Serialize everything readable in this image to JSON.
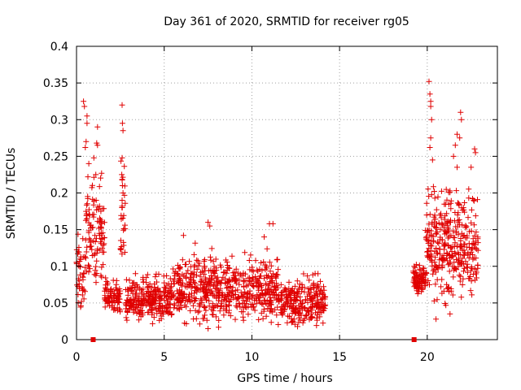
{
  "chart_data": {
    "type": "scatter",
    "title": "Day 361 of 2020, SRMTID for receiver rg05",
    "xlabel": "GPS time / hours",
    "ylabel": "SRMTID / TECUs",
    "xlim": [
      0,
      24
    ],
    "ylim": [
      0,
      0.4
    ],
    "xticks": [
      0,
      5,
      10,
      15,
      20
    ],
    "xtick_labels": [
      "0",
      "5",
      "10",
      "15",
      "20"
    ],
    "yticks": [
      0,
      0.05,
      0.1,
      0.15,
      0.2,
      0.25,
      0.3,
      0.35,
      0.4
    ],
    "ytick_labels": [
      "0",
      "0.05",
      "0.1",
      "0.15",
      "0.2",
      "0.25",
      "0.3",
      "0.35",
      "0.4"
    ],
    "grid": true,
    "marker": "+",
    "color": "#e00000",
    "segments": [
      {
        "x_start": 0.0,
        "x_end": 0.5,
        "y_min": 0.03,
        "y_max": 0.17,
        "count": 45
      },
      {
        "x_start": 0.5,
        "x_end": 1.6,
        "y_min": 0.06,
        "y_max": 0.28,
        "count": 110
      },
      {
        "x_start": 1.6,
        "x_end": 2.5,
        "y_min": 0.03,
        "y_max": 0.1,
        "count": 80
      },
      {
        "x_start": 2.5,
        "x_end": 2.8,
        "y_min": 0.05,
        "y_max": 0.3,
        "count": 28
      },
      {
        "x_start": 2.8,
        "x_end": 5.5,
        "y_min": 0.02,
        "y_max": 0.1,
        "count": 280
      },
      {
        "x_start": 5.5,
        "x_end": 8.0,
        "y_min": 0.02,
        "y_max": 0.14,
        "count": 260
      },
      {
        "x_start": 8.0,
        "x_end": 11.5,
        "y_min": 0.02,
        "y_max": 0.13,
        "count": 330
      },
      {
        "x_start": 11.5,
        "x_end": 14.2,
        "y_min": 0.015,
        "y_max": 0.1,
        "count": 250
      },
      {
        "x_start": 19.2,
        "x_end": 19.9,
        "y_min": 0.06,
        "y_max": 0.11,
        "count": 90
      },
      {
        "x_start": 19.9,
        "x_end": 20.3,
        "y_min": 0.05,
        "y_max": 0.24,
        "count": 45
      },
      {
        "x_start": 20.3,
        "x_end": 21.5,
        "y_min": 0.04,
        "y_max": 0.25,
        "count": 150
      },
      {
        "x_start": 21.5,
        "x_end": 22.9,
        "y_min": 0.05,
        "y_max": 0.23,
        "count": 150
      }
    ],
    "highlights": [
      {
        "x": 0.4,
        "y": 0.325
      },
      {
        "x": 0.45,
        "y": 0.318
      },
      {
        "x": 0.6,
        "y": 0.305
      },
      {
        "x": 0.6,
        "y": 0.295
      },
      {
        "x": 0.55,
        "y": 0.27
      },
      {
        "x": 0.5,
        "y": 0.262
      },
      {
        "x": 1.2,
        "y": 0.29
      },
      {
        "x": 1.15,
        "y": 0.268
      },
      {
        "x": 1.2,
        "y": 0.265
      },
      {
        "x": 0.7,
        "y": 0.24
      },
      {
        "x": 0.65,
        "y": 0.222
      },
      {
        "x": 1.1,
        "y": 0.225
      },
      {
        "x": 2.6,
        "y": 0.32
      },
      {
        "x": 2.62,
        "y": 0.295
      },
      {
        "x": 2.65,
        "y": 0.285
      },
      {
        "x": 2.6,
        "y": 0.248
      },
      {
        "x": 2.58,
        "y": 0.225
      },
      {
        "x": 2.62,
        "y": 0.21
      },
      {
        "x": 2.65,
        "y": 0.2
      },
      {
        "x": 2.6,
        "y": 0.19
      },
      {
        "x": 7.5,
        "y": 0.16
      },
      {
        "x": 7.6,
        "y": 0.155
      },
      {
        "x": 11.0,
        "y": 0.158
      },
      {
        "x": 11.2,
        "y": 0.158
      },
      {
        "x": 6.1,
        "y": 0.142
      },
      {
        "x": 10.7,
        "y": 0.14
      },
      {
        "x": 20.1,
        "y": 0.352
      },
      {
        "x": 20.15,
        "y": 0.335
      },
      {
        "x": 20.2,
        "y": 0.325
      },
      {
        "x": 20.2,
        "y": 0.318
      },
      {
        "x": 20.25,
        "y": 0.3
      },
      {
        "x": 20.2,
        "y": 0.275
      },
      {
        "x": 20.15,
        "y": 0.262
      },
      {
        "x": 21.9,
        "y": 0.31
      },
      {
        "x": 21.95,
        "y": 0.3
      },
      {
        "x": 21.7,
        "y": 0.28
      },
      {
        "x": 21.85,
        "y": 0.275
      },
      {
        "x": 21.6,
        "y": 0.265
      },
      {
        "x": 22.7,
        "y": 0.26
      },
      {
        "x": 22.75,
        "y": 0.255
      },
      {
        "x": 21.5,
        "y": 0.25
      },
      {
        "x": 20.3,
        "y": 0.245
      },
      {
        "x": 21.7,
        "y": 0.235
      },
      {
        "x": 22.5,
        "y": 0.235
      },
      {
        "x": 20.5,
        "y": 0.028
      },
      {
        "x": 21.3,
        "y": 0.035
      },
      {
        "x": 7.5,
        "y": 0.015
      },
      {
        "x": 8.1,
        "y": 0.017
      }
    ],
    "axis_markers": [
      {
        "x": 0.95,
        "y": 0
      },
      {
        "x": 19.25,
        "y": 0
      }
    ]
  }
}
